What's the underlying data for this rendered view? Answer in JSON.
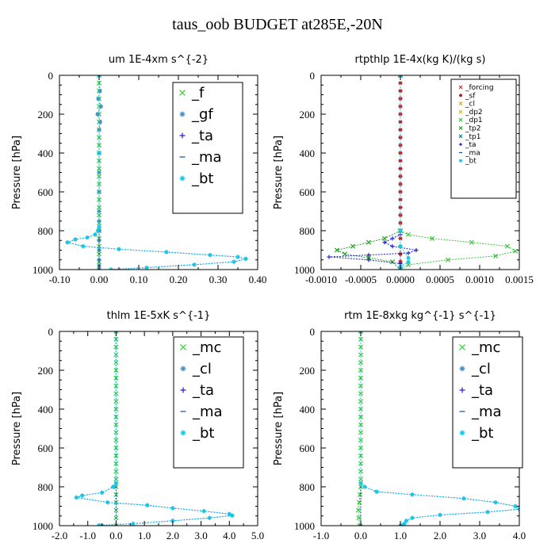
{
  "title": "taus_oob  BUDGET at285E,-20N",
  "chart_data": [
    {
      "type": "line",
      "title": "um   1E-4xm s^{-2}",
      "ylabel": "Pressure [hPa]",
      "xlim": [
        -0.1,
        0.4
      ],
      "ylim": [
        1000,
        0
      ],
      "xticks": [
        -0.1,
        0.0,
        0.1,
        0.2,
        0.3,
        0.4
      ],
      "xticklabels": [
        "-0.10",
        "0.00",
        "0.10",
        "0.20",
        "0.30",
        "0.40"
      ],
      "yticks": [
        0,
        200,
        400,
        600,
        800,
        1000
      ],
      "legend_size": "large",
      "series": [
        {
          "name": "_f",
          "color": "#30c830",
          "marker": "x",
          "x": [
            0.0,
            0.0,
            0.0,
            0.0,
            0.0,
            0.0,
            0.0,
            0.0,
            0.0,
            0.0,
            0.0,
            0.0,
            0.0,
            0.0,
            0.0,
            0.0,
            0.0,
            0.0,
            0.0,
            0.0,
            0.0,
            0.0,
            0.0,
            0.0,
            0.0,
            0.0
          ],
          "y": [
            0,
            40,
            80,
            120,
            160,
            200,
            240,
            280,
            320,
            360,
            400,
            440,
            480,
            520,
            560,
            600,
            640,
            680,
            720,
            760,
            800,
            840,
            880,
            920,
            960,
            1000
          ]
        },
        {
          "name": "_gf",
          "color": "#4090c0",
          "marker": "star",
          "x": [
            0.0,
            0.002,
            -0.002,
            0.005,
            -0.004,
            0.003,
            0.0,
            0.0,
            0.0,
            0.0,
            0.0,
            0.0,
            0.0,
            0.0,
            0.0,
            0.0,
            0.0,
            0.0
          ],
          "y": [
            0,
            80,
            120,
            160,
            200,
            240,
            280,
            400,
            500,
            600,
            700,
            750,
            800,
            850,
            900,
            950,
            980,
            1000
          ]
        },
        {
          "name": "_ta",
          "color": "#2020d0",
          "marker": "plus",
          "x": [
            0.0,
            0.0,
            -0.003,
            -0.01,
            -0.03,
            -0.06,
            -0.08,
            -0.04,
            0.05,
            0.17,
            0.28,
            0.35,
            0.37,
            0.34,
            0.24,
            0.12,
            0.03
          ],
          "y": [
            0,
            780,
            800,
            820,
            835,
            845,
            860,
            880,
            895,
            910,
            925,
            935,
            945,
            960,
            975,
            990,
            1000
          ]
        },
        {
          "name": "_ma",
          "color": "#1050a0",
          "marker": "dash",
          "x": [
            0.0,
            0.0,
            0.0,
            0.0
          ],
          "y": [
            0,
            400,
            800,
            1000
          ]
        },
        {
          "name": "_bt",
          "color": "#10c8e8",
          "marker": "star",
          "x": [
            0.0,
            0.0,
            0.0,
            -0.003,
            -0.01,
            -0.03,
            -0.06,
            -0.08,
            -0.04,
            0.05,
            0.17,
            0.28,
            0.35,
            0.37,
            0.34,
            0.24,
            0.12,
            0.03
          ],
          "y": [
            0,
            400,
            780,
            800,
            820,
            835,
            845,
            860,
            880,
            895,
            910,
            925,
            935,
            945,
            960,
            975,
            990,
            1000
          ]
        }
      ]
    },
    {
      "type": "line",
      "title": "rtpthlp   1E-4x(kg K)/(kg s)",
      "ylabel": "Pressure [hPa]",
      "xlim": [
        -0.001,
        0.0015
      ],
      "ylim": [
        1000,
        0
      ],
      "xticks": [
        -0.001,
        -0.0005,
        0.0,
        0.0005,
        0.001,
        0.0015
      ],
      "xticklabels": [
        "-0.0010",
        "-0.0005",
        "0.0000",
        "0.0005",
        "0.0010",
        "0.0015"
      ],
      "yticks": [
        0,
        200,
        400,
        600,
        800,
        1000
      ],
      "legend_size": "small",
      "series": [
        {
          "name": "_forcing",
          "color": "#c83030",
          "marker": "x",
          "x": [
            0,
            0
          ],
          "y": [
            0,
            1000
          ]
        },
        {
          "name": "_sf",
          "color": "#c01010",
          "marker": "star",
          "x": [
            0.0,
            0.0,
            0.0,
            0.0,
            0.0,
            0.0,
            0.0,
            0.0,
            0.0,
            0.0,
            0.0,
            0.0,
            0.0,
            0.0,
            0.0,
            0.0,
            0.0,
            0.0,
            0.0,
            0.0,
            0.0,
            0.0,
            0.0,
            0.0,
            0.0,
            0.0
          ],
          "y": [
            0,
            40,
            80,
            120,
            160,
            200,
            240,
            280,
            320,
            360,
            400,
            440,
            480,
            520,
            560,
            600,
            640,
            680,
            720,
            760,
            800,
            840,
            880,
            920,
            960,
            1000
          ]
        },
        {
          "name": "_cl",
          "color": "#f0a020",
          "marker": "x",
          "x": [
            0,
            0
          ],
          "y": [
            0,
            1000
          ]
        },
        {
          "name": "_dp2",
          "color": "#d0c020",
          "marker": "x",
          "x": [
            0,
            0
          ],
          "y": [
            0,
            1000
          ]
        },
        {
          "name": "_dp1",
          "color": "#40c040",
          "marker": "x",
          "x": [
            0.0,
            0.0,
            0.0001,
            0.0004,
            0.0009,
            0.00135,
            0.00145,
            0.0012,
            0.0006,
            0.0001,
            0.0
          ],
          "y": [
            0,
            800,
            820,
            840,
            860,
            880,
            905,
            930,
            950,
            975,
            1000
          ]
        },
        {
          "name": "_tp2",
          "color": "#20a020",
          "marker": "x",
          "x": [
            0.0,
            0.0,
            -0.0002,
            -0.0004,
            -0.0006,
            -0.0008,
            -0.0007,
            -0.0004,
            -0.0001,
            0.0
          ],
          "y": [
            0,
            800,
            840,
            860,
            880,
            900,
            920,
            940,
            960,
            1000
          ]
        },
        {
          "name": "_tp1",
          "color": "#208080",
          "marker": "x",
          "x": [
            0,
            0
          ],
          "y": [
            0,
            1000
          ]
        },
        {
          "name": "_ta",
          "color": "#2020d0",
          "marker": "plus",
          "x": [
            0.0,
            0.0,
            -0.0001,
            -0.0002,
            -0.0001,
            0.0002,
            0.0001,
            -0.0004,
            -0.0009,
            -0.0004,
            0.0,
            0.0
          ],
          "y": [
            0,
            820,
            840,
            860,
            880,
            900,
            915,
            925,
            935,
            950,
            970,
            1000
          ]
        },
        {
          "name": "_ma",
          "color": "#1050a0",
          "marker": "dash",
          "x": [
            0,
            0
          ],
          "y": [
            0,
            1000
          ]
        },
        {
          "name": "_bt",
          "color": "#10c8e8",
          "marker": "star",
          "x": [
            0.0,
            0.0,
            0.0,
            0.0001,
            0.0001,
            0.0,
            0.0
          ],
          "y": [
            0,
            800,
            880,
            940,
            960,
            985,
            1000
          ]
        }
      ]
    },
    {
      "type": "line",
      "title": "thlm   1E-5xK s^{-1}",
      "ylabel": "Pressure [hPa]",
      "xlim": [
        -2.0,
        5.0
      ],
      "ylim": [
        1000,
        0
      ],
      "xticks": [
        -2,
        -1,
        0,
        1,
        2,
        3,
        4,
        5
      ],
      "xticklabels": [
        "-2.0",
        "-1.0",
        "0.0",
        "1.0",
        "2.0",
        "3.0",
        "4.0",
        "5.0"
      ],
      "yticks": [
        0,
        200,
        400,
        600,
        800,
        1000
      ],
      "legend_size": "large",
      "series": [
        {
          "name": "_mc",
          "color": "#30c830",
          "marker": "x",
          "x": [
            0.0,
            0.0,
            0.0,
            0.0,
            0.0,
            0.0,
            0.0,
            0.0,
            0.0,
            0.0,
            0.0,
            0.0,
            0.0,
            0.0,
            0.0,
            0.0,
            0.0,
            0.0,
            0.0,
            0.0,
            0.0,
            0.0,
            0.0,
            0.0,
            0.0,
            0.0
          ],
          "y": [
            0,
            40,
            80,
            120,
            160,
            200,
            240,
            280,
            320,
            360,
            400,
            440,
            480,
            520,
            560,
            600,
            640,
            680,
            720,
            760,
            800,
            840,
            880,
            920,
            960,
            1000
          ]
        },
        {
          "name": "_cl",
          "color": "#4090c0",
          "marker": "star",
          "x": [
            0.0,
            0.0
          ],
          "y": [
            0,
            1000
          ]
        },
        {
          "name": "_ta",
          "color": "#2020d0",
          "marker": "plus",
          "x": [
            0.0,
            0.0,
            -0.1,
            -0.5,
            -1.2,
            -1.4,
            -0.3,
            1.1,
            2.0,
            3.1,
            4.0,
            4.1,
            3.3,
            2.0,
            0.6,
            -0.6,
            -0.5
          ],
          "y": [
            0,
            780,
            800,
            830,
            845,
            855,
            880,
            895,
            910,
            925,
            940,
            948,
            960,
            975,
            990,
            998,
            1000
          ]
        },
        {
          "name": "_ma",
          "color": "#1050a0",
          "marker": "dash",
          "x": [
            0.0,
            0.0
          ],
          "y": [
            0,
            1000
          ]
        },
        {
          "name": "_bt",
          "color": "#10c8e8",
          "marker": "star",
          "x": [
            0.0,
            0.0,
            -0.1,
            -0.5,
            -1.2,
            -1.4,
            -0.3,
            1.1,
            2.0,
            3.1,
            4.0,
            4.1,
            3.3,
            2.0,
            0.6,
            -0.6,
            -0.5
          ],
          "y": [
            0,
            780,
            800,
            830,
            845,
            855,
            880,
            895,
            910,
            925,
            940,
            948,
            960,
            975,
            990,
            998,
            1000
          ]
        }
      ]
    },
    {
      "type": "line",
      "title": "rtm   1E-8xkg kg^{-1} s^{-1}",
      "ylabel": "Pressure [hPa]",
      "xlim": [
        -1.0,
        4.0
      ],
      "ylim": [
        1000,
        0
      ],
      "xticks": [
        -1,
        0,
        1,
        2,
        3,
        4
      ],
      "xticklabels": [
        "-1.0",
        "0.0",
        "1.0",
        "2.0",
        "3.0",
        "4.0"
      ],
      "yticks": [
        0,
        200,
        400,
        600,
        800,
        1000
      ],
      "legend_size": "large",
      "series": [
        {
          "name": "_mc",
          "color": "#30c830",
          "marker": "x",
          "x": [
            0.0,
            0.0,
            0.0,
            0.0,
            0.0,
            0.0,
            0.0,
            0.0,
            0.0,
            0.0,
            0.0,
            0.0,
            0.0,
            0.0,
            0.0,
            0.0,
            0.0,
            0.0,
            0.0,
            0.0,
            0.0,
            -0.02,
            -0.04,
            -0.06,
            -0.05,
            -0.03
          ],
          "y": [
            0,
            40,
            80,
            120,
            160,
            200,
            240,
            280,
            320,
            360,
            400,
            440,
            480,
            520,
            560,
            600,
            640,
            680,
            720,
            760,
            800,
            840,
            880,
            920,
            960,
            1000
          ]
        },
        {
          "name": "_cl",
          "color": "#4090c0",
          "marker": "star",
          "x": [
            0.0,
            0.0
          ],
          "y": [
            0,
            1000
          ]
        },
        {
          "name": "_ta",
          "color": "#2020d0",
          "marker": "plus",
          "x": [
            0.0,
            0.0,
            0.1,
            0.4,
            1.3,
            2.6,
            3.4,
            3.9,
            4.0,
            3.2,
            2.0,
            1.3,
            1.15,
            1.1,
            1.05,
            1.0
          ],
          "y": [
            0,
            780,
            800,
            825,
            840,
            860,
            880,
            900,
            915,
            930,
            945,
            960,
            975,
            990,
            998,
            1000
          ]
        },
        {
          "name": "_ma",
          "color": "#1050a0",
          "marker": "dash",
          "x": [
            0.0,
            0.0
          ],
          "y": [
            0,
            1000
          ]
        },
        {
          "name": "_bt",
          "color": "#10c8e8",
          "marker": "star",
          "x": [
            0.0,
            0.0,
            0.1,
            0.4,
            1.3,
            2.6,
            3.4,
            3.9,
            4.0,
            3.2,
            2.0,
            1.3,
            1.15,
            1.1,
            1.05,
            1.0
          ],
          "y": [
            0,
            780,
            800,
            825,
            840,
            860,
            880,
            900,
            915,
            930,
            945,
            960,
            975,
            990,
            998,
            1000
          ]
        }
      ]
    }
  ]
}
